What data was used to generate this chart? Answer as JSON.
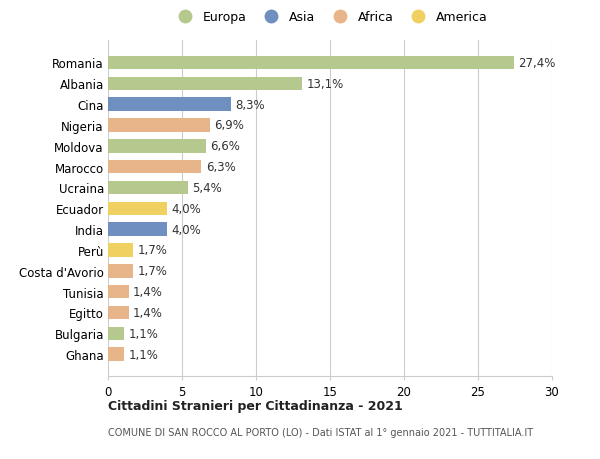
{
  "categories": [
    "Romania",
    "Albania",
    "Cina",
    "Nigeria",
    "Moldova",
    "Marocco",
    "Ucraina",
    "Ecuador",
    "India",
    "Perù",
    "Costa d'Avorio",
    "Tunisia",
    "Egitto",
    "Bulgaria",
    "Ghana"
  ],
  "values": [
    27.4,
    13.1,
    8.3,
    6.9,
    6.6,
    6.3,
    5.4,
    4.0,
    4.0,
    1.7,
    1.7,
    1.4,
    1.4,
    1.1,
    1.1
  ],
  "labels": [
    "27,4%",
    "13,1%",
    "8,3%",
    "6,9%",
    "6,6%",
    "6,3%",
    "5,4%",
    "4,0%",
    "4,0%",
    "1,7%",
    "1,7%",
    "1,4%",
    "1,4%",
    "1,1%",
    "1,1%"
  ],
  "colors": [
    "#b5c98e",
    "#b5c98e",
    "#6f8fc0",
    "#e8b48a",
    "#b5c98e",
    "#e8b48a",
    "#b5c98e",
    "#f0d060",
    "#6f8fc0",
    "#f0d060",
    "#e8b48a",
    "#e8b48a",
    "#e8b48a",
    "#b5c98e",
    "#e8b48a"
  ],
  "legend_labels": [
    "Europa",
    "Asia",
    "Africa",
    "America"
  ],
  "legend_colors": [
    "#b5c98e",
    "#6f8fc0",
    "#e8b48a",
    "#f0d060"
  ],
  "xlim": [
    0,
    30
  ],
  "xticks": [
    0,
    5,
    10,
    15,
    20,
    25,
    30
  ],
  "title1": "Cittadini Stranieri per Cittadinanza - 2021",
  "title2": "COMUNE DI SAN ROCCO AL PORTO (LO) - Dati ISTAT al 1° gennaio 2021 - TUTTITALIA.IT",
  "background_color": "#ffffff",
  "grid_color": "#cccccc",
  "bar_height": 0.65,
  "label_fontsize": 8.5,
  "tick_fontsize": 8.5
}
